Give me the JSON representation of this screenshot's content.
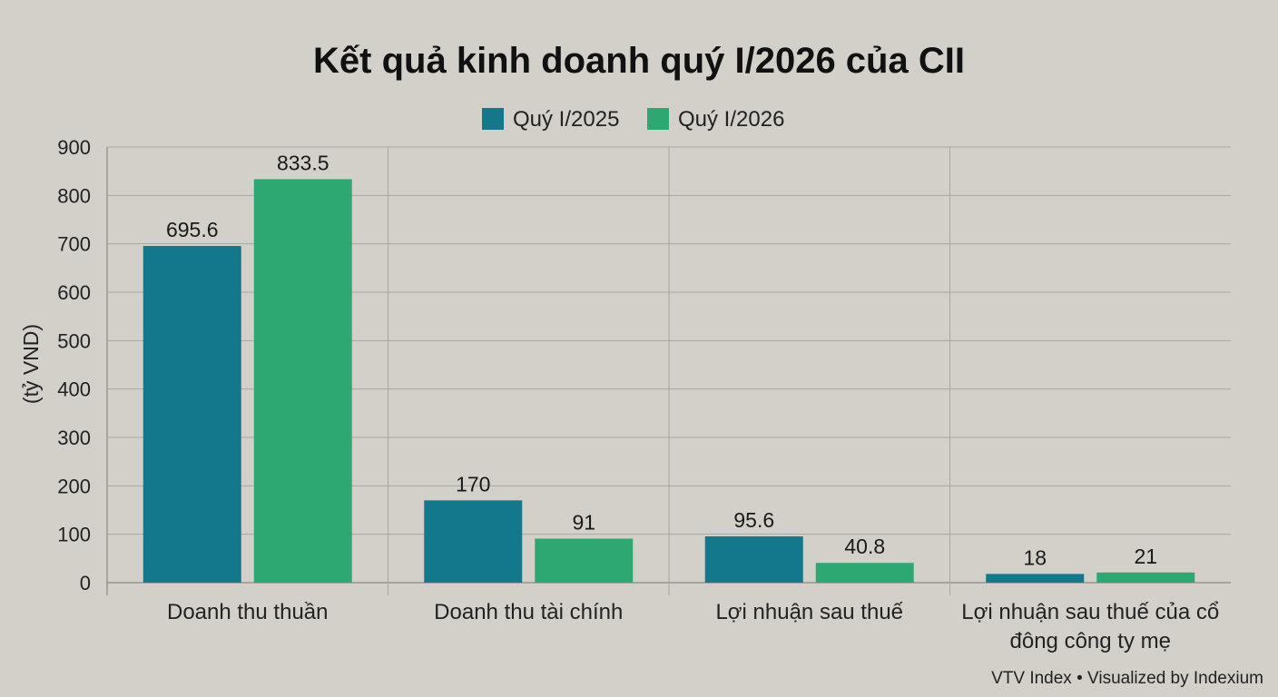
{
  "chart_data": {
    "type": "bar",
    "title": "Kết quả kinh doanh quý I/2026 của CII",
    "ylabel": "(tỷ VND)",
    "xlabel": "",
    "ylim": [
      0,
      900
    ],
    "yticks": [
      0,
      100,
      200,
      300,
      400,
      500,
      600,
      700,
      800,
      900
    ],
    "categories": [
      [
        "Doanh thu thuần"
      ],
      [
        "Doanh thu tài chính"
      ],
      [
        "Lợi nhuận sau thuế"
      ],
      [
        "Lợi nhuận sau thuế của cổ",
        "đông công ty mẹ"
      ]
    ],
    "series": [
      {
        "name": "Quý I/2025",
        "color": "#14788c",
        "values": [
          695.6,
          170,
          95.6,
          18
        ],
        "labels": [
          "695.6",
          "170",
          "95.6",
          "18"
        ]
      },
      {
        "name": "Quý I/2026",
        "color": "#2ea873",
        "values": [
          833.5,
          91,
          40.8,
          21
        ],
        "labels": [
          "833.5",
          "91",
          "40.8",
          "21"
        ]
      }
    ],
    "grid": true,
    "legend": "top-center",
    "source": "VTV Index • Visualized by Indexium"
  }
}
